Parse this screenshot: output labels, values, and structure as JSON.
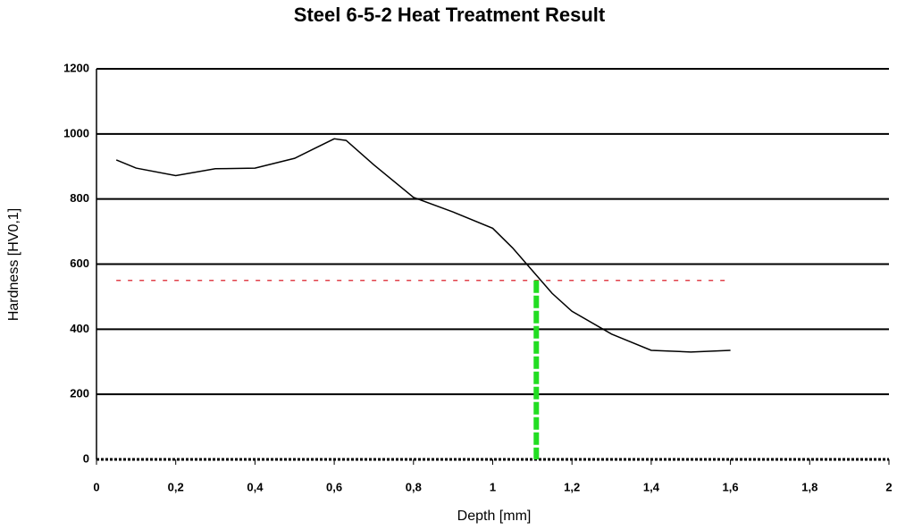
{
  "chart_data": {
    "type": "line",
    "title": "Steel 6-5-2 Heat Treatment Result",
    "xlabel": "Depth [mm]",
    "ylabel": "Hardness [HV0,1]",
    "x": [
      0.05,
      0.1,
      0.2,
      0.3,
      0.4,
      0.5,
      0.55,
      0.6,
      0.63,
      0.7,
      0.8,
      0.9,
      1.0,
      1.05,
      1.1,
      1.15,
      1.2,
      1.3,
      1.4,
      1.5,
      1.6
    ],
    "series": [
      {
        "color": "#000000",
        "values": [
          920,
          895,
          872,
          893,
          895,
          925,
          955,
          985,
          980,
          905,
          805,
          760,
          710,
          650,
          580,
          510,
          455,
          385,
          335,
          330,
          335
        ]
      }
    ],
    "threshold": {
      "value": 550,
      "xrange": [
        0.05,
        1.6
      ],
      "color": "#e0404a"
    },
    "threshold_depth": {
      "value": 1.11,
      "color": "#22dd22"
    },
    "xlim": [
      0,
      2
    ],
    "xticks": [
      0,
      {
        "value": 0.2,
        "label": "0,2"
      },
      {
        "value": 0.4,
        "label": "0,4"
      },
      {
        "value": 0.6,
        "label": "0,6"
      },
      {
        "value": 0.8,
        "label": "0,8"
      },
      1,
      {
        "value": 1.2,
        "label": "1,2"
      },
      {
        "value": 1.4,
        "label": "1,4"
      },
      {
        "value": 1.6,
        "label": "1,6"
      },
      {
        "value": 1.8,
        "label": "1,8"
      },
      2
    ],
    "ylim": [
      0,
      1200
    ],
    "yticks": [
      0,
      200,
      400,
      600,
      800,
      1000,
      1200
    ],
    "grid": true
  }
}
